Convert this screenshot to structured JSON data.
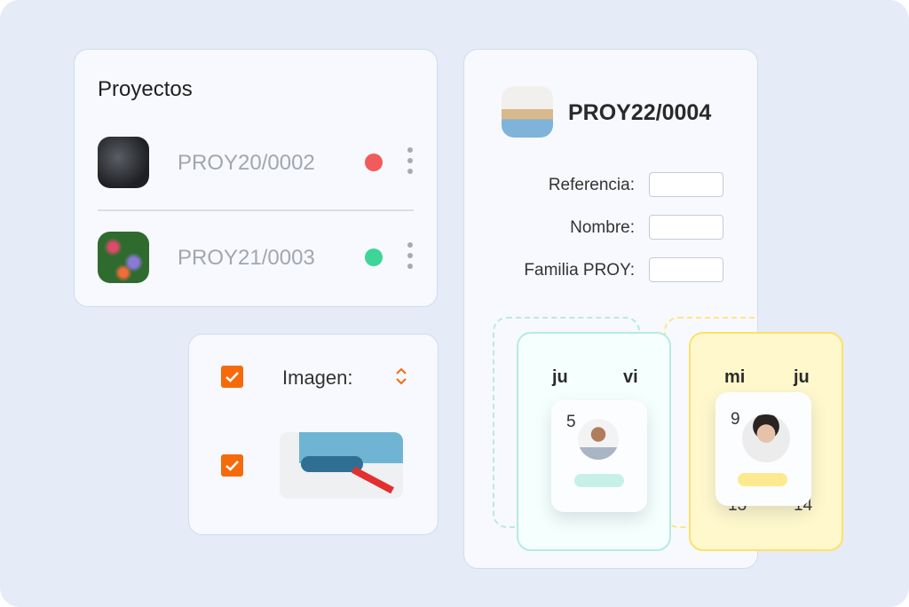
{
  "projects_card": {
    "title": "Proyectos",
    "items": [
      {
        "code": "PROY20/0002",
        "status_color": "#f25b5b",
        "image": "mechanic-photo"
      },
      {
        "code": "PROY21/0003",
        "status_color": "#3dd598",
        "image": "flowers-photo"
      }
    ]
  },
  "image_card": {
    "label": "Imagen:",
    "checkbox1_checked": true,
    "checkbox2_checked": true,
    "accent": "#f56b0c",
    "image": "paint-roller-photo"
  },
  "detail_card": {
    "title": "PROY22/0004",
    "image": "house-photo",
    "fields": [
      {
        "label": "Referencia:",
        "value": ""
      },
      {
        "label": "Nombre:",
        "value": ""
      },
      {
        "label": "Familia PROY:",
        "value": ""
      }
    ]
  },
  "calendar": {
    "teal": {
      "days": [
        "ju",
        "vi"
      ],
      "number": "5",
      "color": "#c6f0e8"
    },
    "yellow": {
      "days": [
        "mi",
        "ju"
      ],
      "number": "9",
      "bottom_numbers": [
        "13",
        "14"
      ],
      "color": "#fff0a0"
    }
  }
}
